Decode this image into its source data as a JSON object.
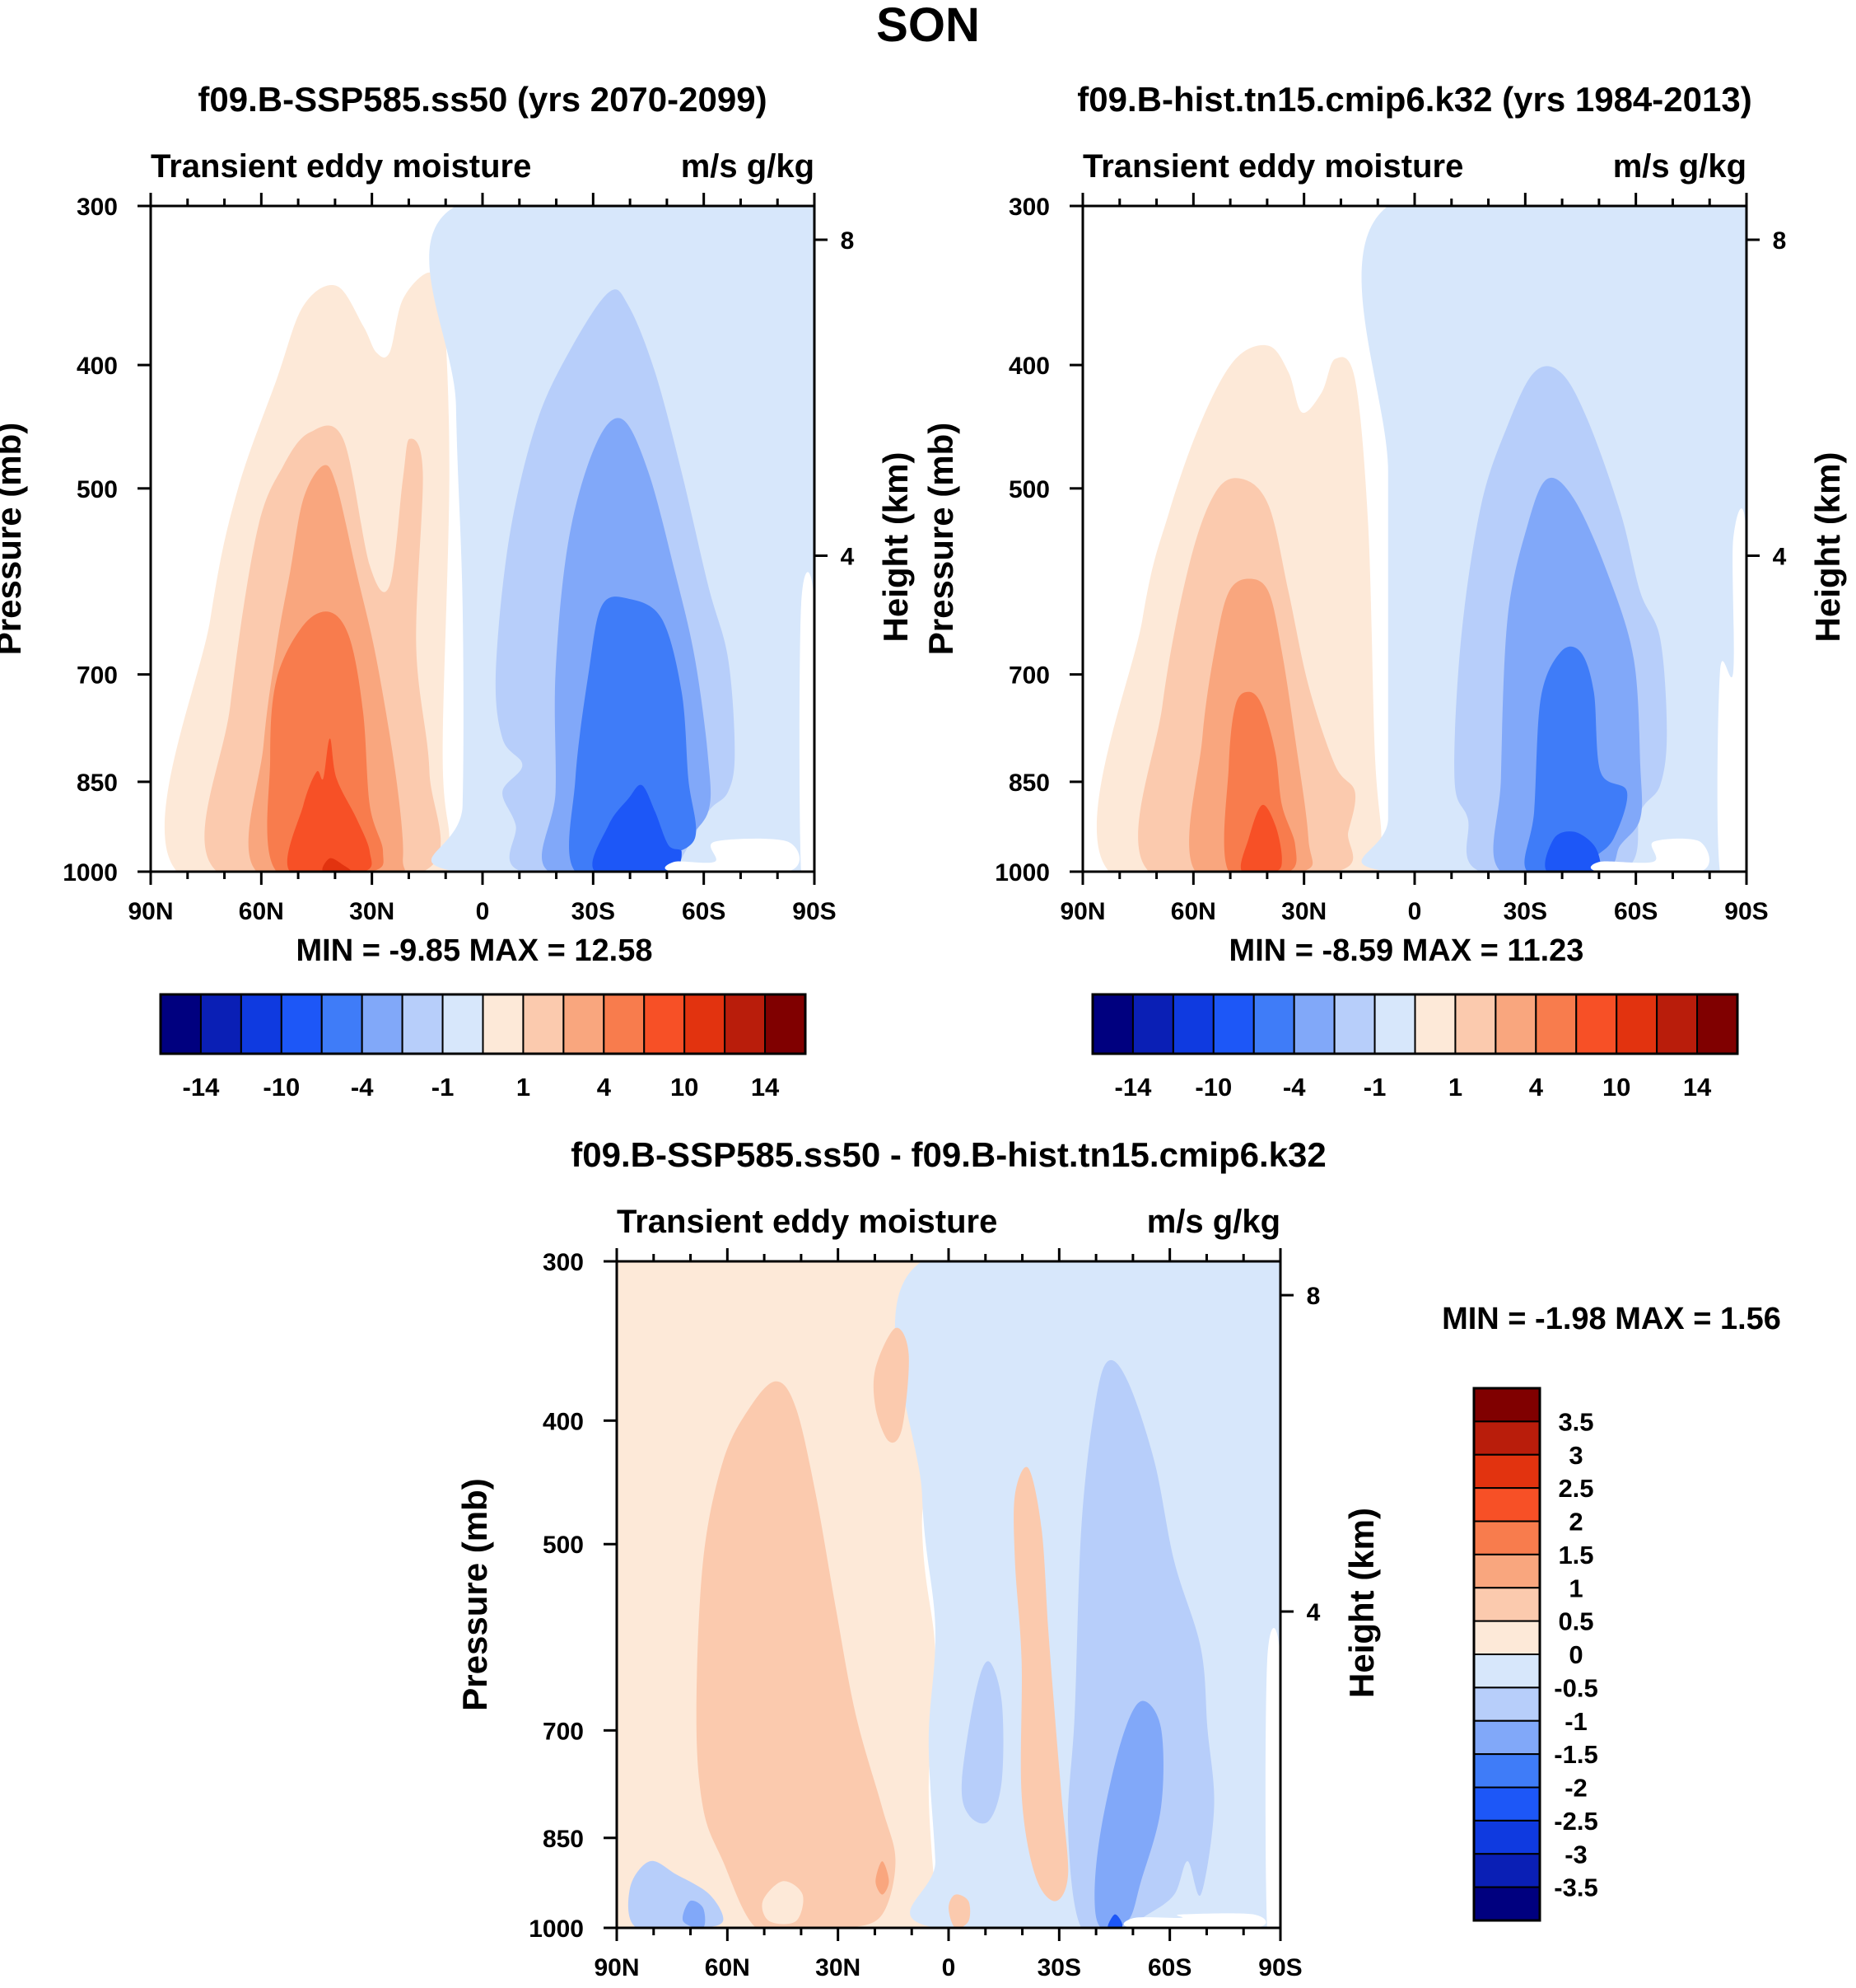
{
  "figure_title": "SON",
  "colors": {
    "full_palette": [
      "#00007f",
      "#0a1fb5",
      "#0f3ae0",
      "#1d57f7",
      "#3f7cf8",
      "#81a8f9",
      "#b7cefa",
      "#d7e7fb",
      "#fde9d8",
      "#fbcaae",
      "#f9a67e",
      "#f87c4d",
      "#f75026",
      "#e2330f",
      "#b91d0b",
      "#800000"
    ],
    "diff_palette": [
      "#00007f",
      "#0a1fb5",
      "#0f3ae0",
      "#1d57f7",
      "#3f7cf8",
      "#81a8f9",
      "#b7cefa",
      "#d7e7fb",
      "#fde9d8",
      "#fbcaae",
      "#f9a67e",
      "#f87c4d",
      "#f75026",
      "#e2330f",
      "#b91d0b",
      "#800000"
    ]
  },
  "chart_data": [
    {
      "id": "left",
      "type": "contour",
      "title": "f09.B-SSP585.ss50 (yrs 2070-2099)",
      "subtitle_left": "Transient eddy moisture",
      "subtitle_right": "m/s g/kg",
      "ylabel": "Pressure (mb)",
      "ylabel_right": "Height (km)",
      "x_ticks": [
        "90N",
        "60N",
        "30N",
        "0",
        "30S",
        "60S",
        "90S"
      ],
      "x_values": [
        90,
        60,
        30,
        0,
        -30,
        -60,
        -90
      ],
      "y_ticks": [
        "300",
        "400",
        "500",
        "700",
        "850",
        "1000"
      ],
      "y_values": [
        300,
        400,
        500,
        700,
        850,
        1000
      ],
      "height_ticks": [
        "8",
        "4"
      ],
      "height_values": [
        8,
        4
      ],
      "ylim": [
        1000,
        300
      ],
      "xlim": [
        90,
        -90
      ],
      "stats": "MIN =  -9.85  MAX =  12.58",
      "min": -9.85,
      "max": 12.58,
      "colorbar_labels": [
        "-14",
        "-10",
        "-4",
        "-1",
        "1",
        "4",
        "10",
        "14"
      ]
    },
    {
      "id": "right",
      "type": "contour",
      "title": "f09.B-hist.tn15.cmip6.k32 (yrs 1984-2013)",
      "subtitle_left": "Transient eddy moisture",
      "subtitle_right": "m/s g/kg",
      "ylabel": "Pressure (mb)",
      "ylabel_right": "Height (km)",
      "x_ticks": [
        "90N",
        "60N",
        "30N",
        "0",
        "30S",
        "60S",
        "90S"
      ],
      "x_values": [
        90,
        60,
        30,
        0,
        -30,
        -60,
        -90
      ],
      "y_ticks": [
        "300",
        "400",
        "500",
        "700",
        "850",
        "1000"
      ],
      "y_values": [
        300,
        400,
        500,
        700,
        850,
        1000
      ],
      "height_ticks": [
        "8",
        "4"
      ],
      "height_values": [
        8,
        4
      ],
      "ylim": [
        1000,
        300
      ],
      "xlim": [
        90,
        -90
      ],
      "stats": "MIN =  -8.59  MAX =  11.23",
      "min": -8.59,
      "max": 11.23,
      "colorbar_labels": [
        "-14",
        "-10",
        "-4",
        "-1",
        "1",
        "4",
        "10",
        "14"
      ]
    },
    {
      "id": "diff",
      "type": "contour",
      "title": "f09.B-SSP585.ss50 - f09.B-hist.tn15.cmip6.k32",
      "subtitle_left": "Transient eddy moisture",
      "subtitle_right": "m/s g/kg",
      "ylabel": "Pressure (mb)",
      "ylabel_right": "Height (km)",
      "x_ticks": [
        "90N",
        "60N",
        "30N",
        "0",
        "30S",
        "60S",
        "90S"
      ],
      "x_values": [
        90,
        60,
        30,
        0,
        -30,
        -60,
        -90
      ],
      "y_ticks": [
        "300",
        "400",
        "500",
        "700",
        "850",
        "1000"
      ],
      "y_values": [
        300,
        400,
        500,
        700,
        850,
        1000
      ],
      "height_ticks": [
        "8",
        "4"
      ],
      "height_values": [
        8,
        4
      ],
      "ylim": [
        1000,
        300
      ],
      "xlim": [
        90,
        -90
      ],
      "stats": "MIN =  -1.98  MAX =   1.56",
      "min": -1.98,
      "max": 1.56,
      "colorbar_labels": [
        "3.5",
        "3",
        "2.5",
        "2",
        "1.5",
        "1",
        "0.5",
        "0",
        "-0.5",
        "-1",
        "-1.5",
        "-2",
        "-2.5",
        "-3",
        "-3.5"
      ]
    }
  ]
}
